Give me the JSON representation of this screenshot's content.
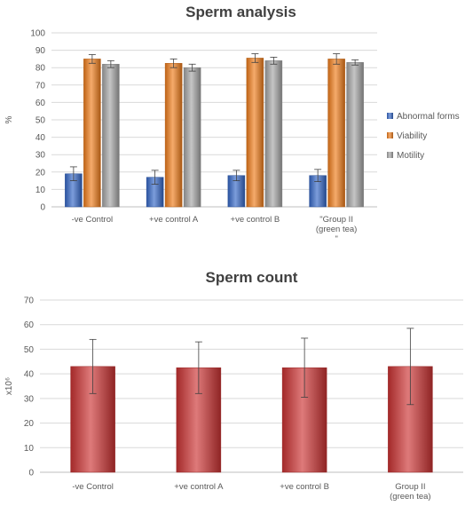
{
  "chart_data": [
    {
      "type": "bar",
      "title": "Sperm analysis",
      "xlabel": "",
      "ylabel": "%",
      "ylim": [
        0,
        100
      ],
      "yticks": [
        0,
        10,
        20,
        30,
        40,
        50,
        60,
        70,
        80,
        90,
        100
      ],
      "grid": true,
      "legend_position": "right",
      "categories": [
        [
          "-ve Control"
        ],
        [
          "+ve control A"
        ],
        [
          "+ve control B"
        ],
        [
          "\"Group II",
          "(green tea)",
          "\""
        ]
      ],
      "series": [
        {
          "name": "Abnormal forms",
          "color": "#3568c8",
          "values": [
            19,
            17,
            18,
            18
          ],
          "errors": [
            4,
            4,
            3,
            3.5
          ]
        },
        {
          "name": "Viability",
          "color": "#f07d1c",
          "values": [
            85,
            82.5,
            85.5,
            85
          ],
          "errors": [
            2.5,
            2.5,
            2.5,
            3
          ]
        },
        {
          "name": "Motility",
          "color": "#a6a6a6",
          "values": [
            82,
            80,
            84,
            83
          ],
          "errors": [
            2,
            2,
            2,
            1.5
          ]
        }
      ]
    },
    {
      "type": "bar",
      "title": "Sperm count",
      "xlabel": "",
      "ylabel": "x10⁶",
      "ylim": [
        0,
        70
      ],
      "yticks": [
        0,
        10,
        20,
        30,
        40,
        50,
        60,
        70
      ],
      "grid": true,
      "categories": [
        [
          "-ve Control"
        ],
        [
          "+ve control A"
        ],
        [
          "+ve control B"
        ],
        [
          "Group II",
          "(green tea)"
        ]
      ],
      "series": [
        {
          "color": "#cc3333",
          "values": [
            43,
            42.5,
            42.5,
            43
          ],
          "errors": [
            11,
            10.5,
            12,
            15.5
          ]
        }
      ]
    }
  ]
}
